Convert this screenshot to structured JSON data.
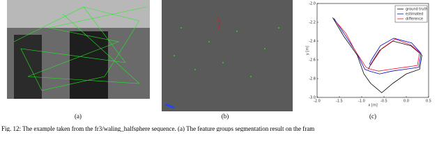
{
  "panels": [
    "(a)",
    "(b)",
    "(c)"
  ],
  "caption": "Fig. 12: The example taken from the fr3/waling_halfsphere sequence. (a) The feature groups segmentation result on the fram",
  "chart_data": {
    "type": "line",
    "xlabel": "x [m]",
    "ylabel": "y [m]",
    "xlim": [
      -2,
      0.5
    ],
    "ylim": [
      -3,
      -2
    ],
    "xticks": [
      {
        "value": -2,
        "label": "-2.0"
      },
      -1.5,
      {
        "value": -1,
        "label": "-1.0"
      },
      -0.5,
      {
        "value": 0,
        "label": "0.0"
      },
      0.5
    ],
    "yticks": [
      {
        "value": -3,
        "label": "-3.0"
      },
      -2.8,
      -2.6,
      -2.4,
      -2.2,
      {
        "value": -2,
        "label": "-2.0"
      }
    ],
    "legend": "upper right",
    "series": [
      {
        "name": "ground truth",
        "color": "#000000",
        "x": [
          -1.65,
          -1.4,
          -1.1,
          -0.95,
          -0.8,
          -0.55,
          -0.3,
          0.0,
          0.3,
          0.35,
          0.1,
          -0.3,
          -0.6,
          -0.8,
          -0.85
        ],
        "y": [
          -2.15,
          -2.35,
          -2.55,
          -2.75,
          -2.85,
          -2.95,
          -2.85,
          -2.75,
          -2.7,
          -2.55,
          -2.45,
          -2.4,
          -2.5,
          -2.65,
          -2.7
        ]
      },
      {
        "name": "estimated",
        "color": "#0000cc",
        "x": [
          -1.62,
          -1.38,
          -1.12,
          -0.93,
          -0.82,
          -0.6,
          -0.32,
          -0.02,
          0.28,
          0.33,
          0.12,
          -0.28,
          -0.58,
          -0.78,
          -0.83
        ],
        "y": [
          -2.16,
          -2.33,
          -2.52,
          -2.7,
          -2.72,
          -2.75,
          -2.72,
          -2.7,
          -2.68,
          -2.53,
          -2.42,
          -2.37,
          -2.45,
          -2.6,
          -2.65
        ]
      },
      {
        "name": "difference",
        "color": "#ee1133",
        "x": [
          -1.6,
          -1.35,
          -1.15,
          -0.9,
          -0.8,
          -0.62,
          -0.35,
          -0.05,
          0.25,
          0.3,
          0.1,
          -0.25,
          -0.55,
          -0.75,
          -0.8
        ],
        "y": [
          -2.18,
          -2.32,
          -2.5,
          -2.68,
          -2.7,
          -2.72,
          -2.7,
          -2.68,
          -2.66,
          -2.52,
          -2.44,
          -2.38,
          -2.48,
          -2.62,
          -2.66
        ]
      }
    ]
  }
}
